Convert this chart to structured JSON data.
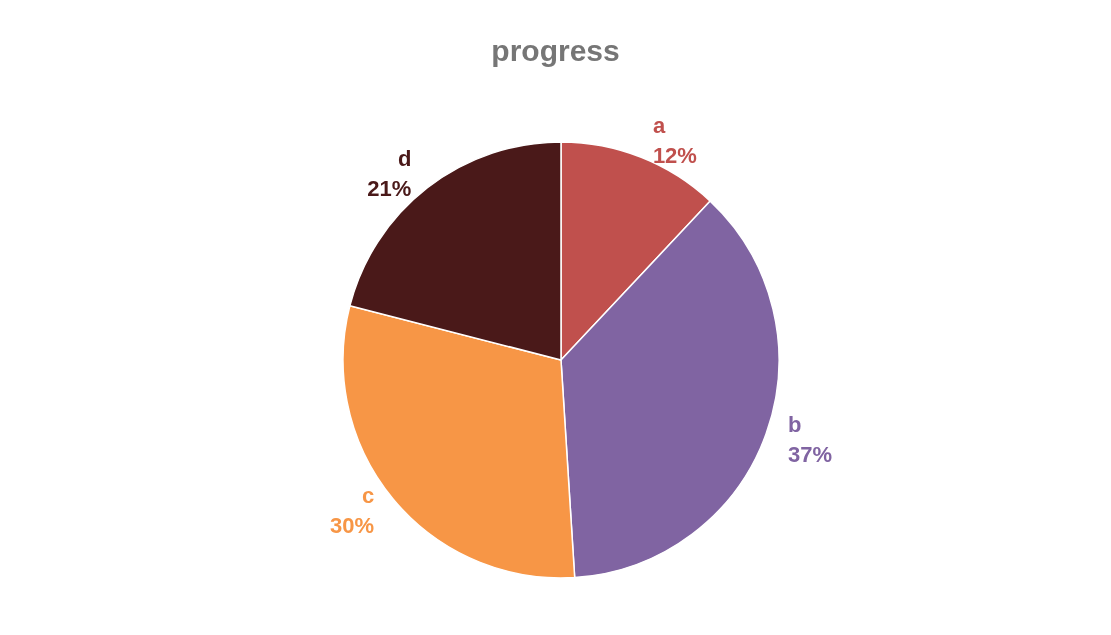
{
  "chart_data": {
    "type": "pie",
    "title": "progress",
    "categories": [
      "a",
      "b",
      "c",
      "d"
    ],
    "values": [
      12,
      37,
      30,
      21
    ],
    "value_labels": [
      "12%",
      "37%",
      "30%",
      "21%"
    ],
    "colors": [
      "#c0504d",
      "#8064a2",
      "#f79646",
      "#4a1919"
    ],
    "legend": false
  }
}
